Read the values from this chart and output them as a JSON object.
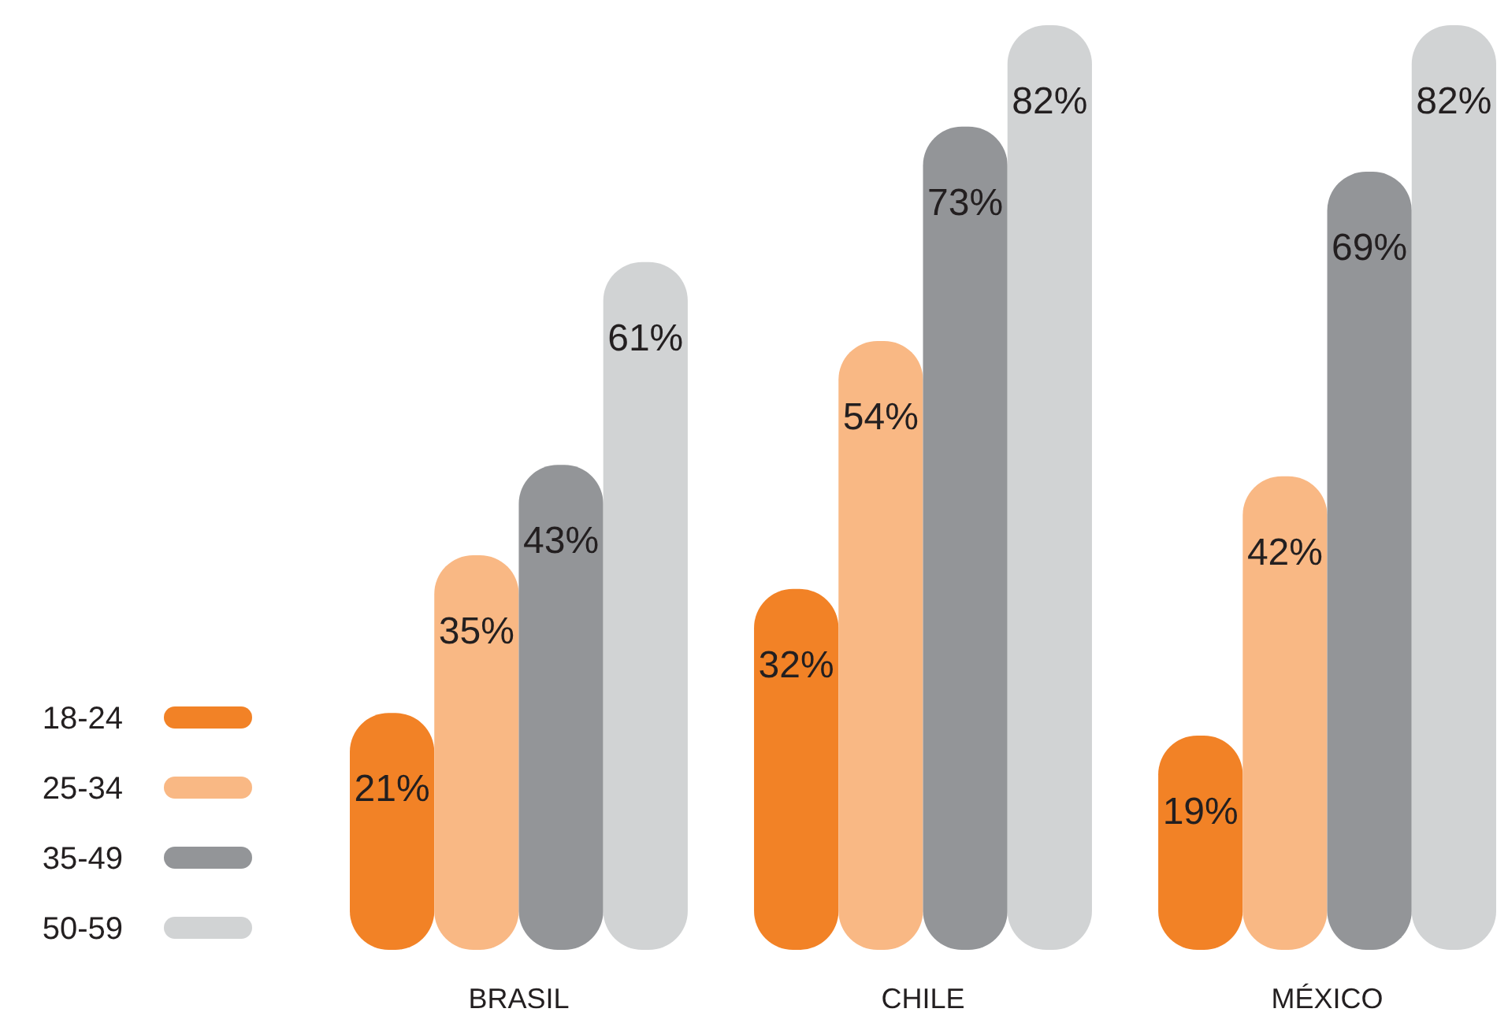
{
  "chart_data": {
    "type": "bar",
    "categories": [
      "BRASIL",
      "CHILE",
      "MÉXICO"
    ],
    "series": [
      {
        "name": "18-24",
        "color": "#f28226",
        "values": [
          21,
          32,
          19
        ],
        "value_labels": [
          "21%",
          "32%",
          "19%"
        ]
      },
      {
        "name": "25-34",
        "color": "#f9b884",
        "values": [
          35,
          54,
          42
        ],
        "value_labels": [
          "35%",
          "54%",
          "42%"
        ]
      },
      {
        "name": "35-49",
        "color": "#939598",
        "values": [
          43,
          73,
          69
        ],
        "value_labels": [
          "43%",
          "73%",
          "69%"
        ]
      },
      {
        "name": "50-59",
        "color": "#d1d3d4",
        "values": [
          61,
          82,
          82
        ],
        "value_labels": [
          "61%",
          "82%",
          "82%"
        ]
      }
    ],
    "legend": "left"
  }
}
